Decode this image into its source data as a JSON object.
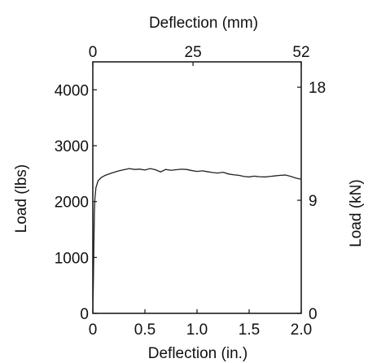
{
  "chart_data": {
    "type": "line",
    "title": "",
    "xlabel": "Deflection (in.)",
    "ylabel": "Load (lbs)",
    "x2label": "Deflection (mm)",
    "y2label": "Load (kN)",
    "xlim": [
      0,
      2.0
    ],
    "ylim": [
      0,
      4500
    ],
    "x2lim": [
      0,
      52
    ],
    "y2lim": [
      0,
      20.016
    ],
    "x_ticks": [
      "0",
      "0.5",
      "1.0",
      "1.5",
      "2.0"
    ],
    "y_ticks": [
      "0",
      "1000",
      "2000",
      "3000",
      "4000"
    ],
    "x2_ticks": [
      "0",
      "25",
      "52"
    ],
    "y2_ticks": [
      "0",
      "9",
      "18"
    ],
    "grid": false,
    "legend": "none",
    "line_color": "#222222",
    "series": [
      {
        "x": [
          0,
          0.005,
          0.01,
          0.015,
          0.02,
          0.03,
          0.05,
          0.08,
          0.12,
          0.18,
          0.25,
          0.3,
          0.35,
          0.4,
          0.45,
          0.5,
          0.55,
          0.6,
          0.65,
          0.7,
          0.75,
          0.8,
          0.85,
          0.9,
          0.95,
          1.0,
          1.05,
          1.1,
          1.15,
          1.2,
          1.25,
          1.3,
          1.35,
          1.4,
          1.45,
          1.5,
          1.55,
          1.6,
          1.65,
          1.7,
          1.75,
          1.8,
          1.85,
          1.9,
          1.95,
          2.0
        ],
        "y": [
          0,
          500,
          1200,
          1800,
          2050,
          2250,
          2370,
          2430,
          2470,
          2510,
          2550,
          2570,
          2590,
          2575,
          2580,
          2565,
          2590,
          2570,
          2530,
          2575,
          2560,
          2570,
          2580,
          2575,
          2555,
          2540,
          2550,
          2535,
          2520,
          2510,
          2525,
          2495,
          2480,
          2470,
          2450,
          2440,
          2455,
          2445,
          2440,
          2450,
          2460,
          2470,
          2475,
          2450,
          2420,
          2400
        ]
      }
    ]
  }
}
